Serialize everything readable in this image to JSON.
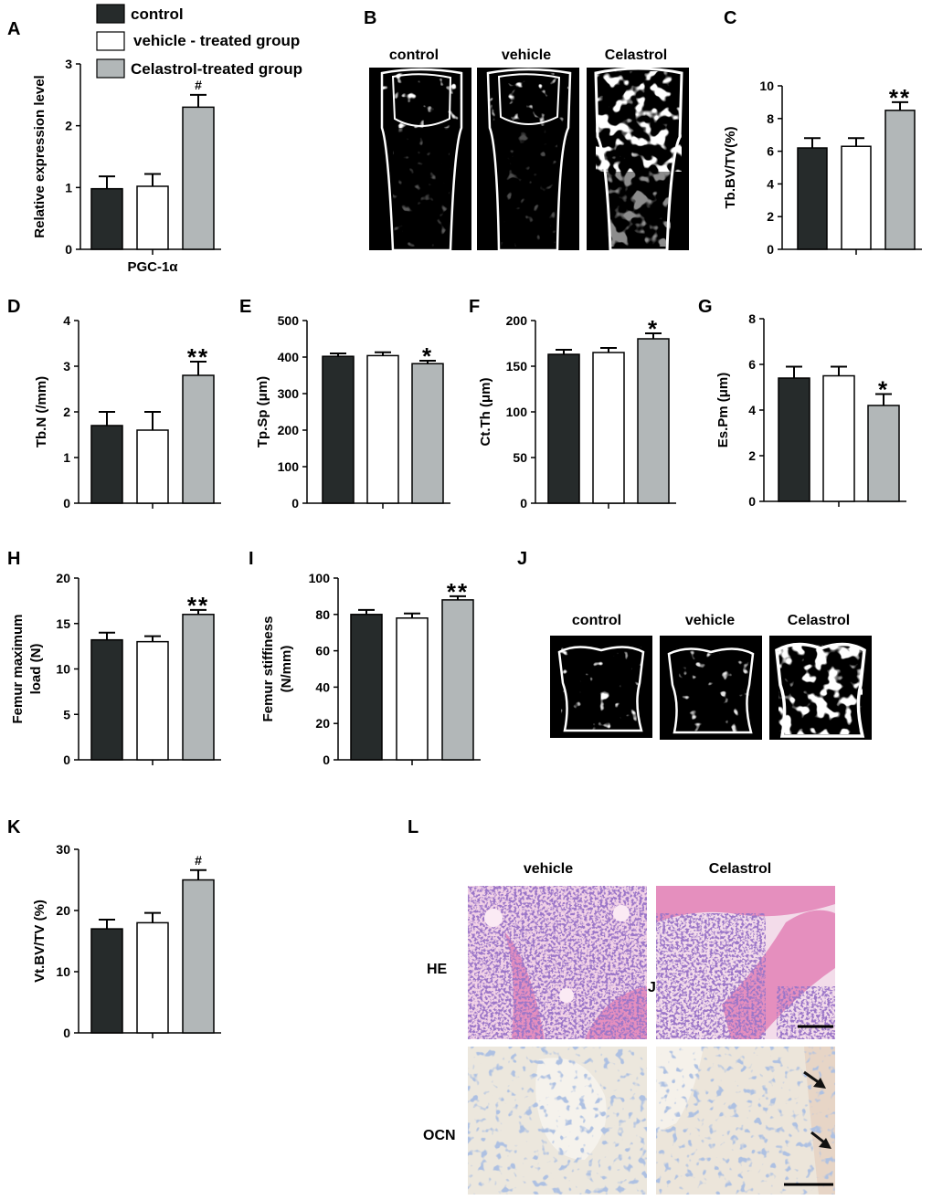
{
  "colors": {
    "control": "#262b2b",
    "vehicle": "#ffffff",
    "celastrol": "#b2b7b8",
    "he_bg": "#f1d2e6",
    "he_cell": "#5a2f9a",
    "he_pink": "#e58fbe",
    "ocn_bg": "#ece7dd",
    "ocn_cell": "#6f8bc0"
  },
  "legend": {
    "items": [
      {
        "label": "control",
        "color": "#262b2b"
      },
      {
        "label": "vehicle - treated group",
        "color": "#ffffff"
      },
      {
        "label": "Celastrol-treated group",
        "color": "#b2b7b8"
      }
    ]
  },
  "panels": {
    "A": "A",
    "B": "B",
    "C": "C",
    "D": "D",
    "E": "E",
    "F": "F",
    "G": "G",
    "H": "H",
    "I": "I",
    "J": "J",
    "K": "K",
    "L": "L"
  },
  "images": {
    "B": {
      "titles": [
        "control",
        "vehicle",
        "Celastrol"
      ]
    },
    "J": {
      "titles": [
        "control",
        "vehicle",
        "Celastrol"
      ]
    },
    "L": {
      "titles": [
        "vehicle",
        "Celastrol"
      ],
      "rows": [
        "HE",
        "OCN"
      ],
      "stray_letter": "J"
    }
  },
  "chart_data": [
    {
      "id": "A",
      "type": "bar",
      "categories": [
        "PGC-1α"
      ],
      "series": [
        {
          "name": "control",
          "values": [
            0.98
          ],
          "errors": [
            0.2
          ]
        },
        {
          "name": "vehicle - treated group",
          "values": [
            1.02
          ],
          "errors": [
            0.2
          ]
        },
        {
          "name": "Celastrol-treated group",
          "values": [
            2.3
          ],
          "errors": [
            0.2
          ]
        }
      ],
      "xlabel": "PGC-1α",
      "ylabel": "Relative expression level",
      "ylim": [
        0,
        3
      ],
      "yticks": [
        "0",
        "1",
        "2",
        "3"
      ],
      "annotations": [
        "",
        "",
        "#"
      ]
    },
    {
      "id": "C",
      "type": "bar",
      "categories": [
        ""
      ],
      "series": [
        {
          "name": "control",
          "values": [
            6.2
          ],
          "errors": [
            0.6
          ]
        },
        {
          "name": "vehicle - treated group",
          "values": [
            6.3
          ],
          "errors": [
            0.5
          ]
        },
        {
          "name": "Celastrol-treated group",
          "values": [
            8.5
          ],
          "errors": [
            0.5
          ]
        }
      ],
      "ylabel": "Tb.BV/TV(%)",
      "ylim": [
        0,
        10
      ],
      "yticks": [
        "0",
        "2",
        "4",
        "6",
        "8",
        "10"
      ],
      "annotations": [
        "",
        "",
        "**"
      ]
    },
    {
      "id": "D",
      "type": "bar",
      "categories": [
        ""
      ],
      "series": [
        {
          "name": "control",
          "values": [
            1.7
          ],
          "errors": [
            0.3
          ]
        },
        {
          "name": "vehicle - treated group",
          "values": [
            1.6
          ],
          "errors": [
            0.4
          ]
        },
        {
          "name": "Celastrol-treated group",
          "values": [
            2.8
          ],
          "errors": [
            0.3
          ]
        }
      ],
      "ylabel": "Tb.N (/mm)",
      "ylim": [
        0,
        4
      ],
      "yticks": [
        "0",
        "1",
        "2",
        "3",
        "4"
      ],
      "annotations": [
        "",
        "",
        "**"
      ]
    },
    {
      "id": "E",
      "type": "bar",
      "categories": [
        ""
      ],
      "series": [
        {
          "name": "control",
          "values": [
            402
          ],
          "errors": [
            8
          ]
        },
        {
          "name": "vehicle - treated group",
          "values": [
            404
          ],
          "errors": [
            9
          ]
        },
        {
          "name": "Celastrol-treated group",
          "values": [
            382
          ],
          "errors": [
            8
          ]
        }
      ],
      "ylabel": "Tp.Sp (μm)",
      "ylim": [
        0,
        500
      ],
      "yticks": [
        "0",
        "100",
        "200",
        "300",
        "400",
        "500"
      ],
      "annotations": [
        "",
        "",
        "*"
      ]
    },
    {
      "id": "F",
      "type": "bar",
      "categories": [
        ""
      ],
      "series": [
        {
          "name": "control",
          "values": [
            163
          ],
          "errors": [
            5
          ]
        },
        {
          "name": "vehicle - treated group",
          "values": [
            165
          ],
          "errors": [
            5
          ]
        },
        {
          "name": "Celastrol-treated group",
          "values": [
            180
          ],
          "errors": [
            6
          ]
        }
      ],
      "ylabel": "Ct.Th (μm)",
      "ylim": [
        0,
        200
      ],
      "yticks": [
        "0",
        "50",
        "100",
        "150",
        "200"
      ],
      "annotations": [
        "",
        "",
        "*"
      ]
    },
    {
      "id": "G",
      "type": "bar",
      "categories": [
        ""
      ],
      "series": [
        {
          "name": "control",
          "values": [
            5.4
          ],
          "errors": [
            0.5
          ]
        },
        {
          "name": "vehicle - treated group",
          "values": [
            5.5
          ],
          "errors": [
            0.4
          ]
        },
        {
          "name": "Celastrol-treated group",
          "values": [
            4.2
          ],
          "errors": [
            0.5
          ]
        }
      ],
      "ylabel": "Es.Pm (μm)",
      "ylim": [
        0,
        8
      ],
      "yticks": [
        "0",
        "2",
        "4",
        "6",
        "8"
      ],
      "annotations": [
        "",
        "",
        "*"
      ]
    },
    {
      "id": "H",
      "type": "bar",
      "categories": [
        ""
      ],
      "series": [
        {
          "name": "control",
          "values": [
            13.2
          ],
          "errors": [
            0.8
          ]
        },
        {
          "name": "vehicle - treated group",
          "values": [
            13.0
          ],
          "errors": [
            0.6
          ]
        },
        {
          "name": "Celastrol-treated group",
          "values": [
            16.0
          ],
          "errors": [
            0.5
          ]
        }
      ],
      "ylabel": "Femur maximum load (N)",
      "ylim": [
        0,
        20
      ],
      "yticks": [
        "0",
        "5",
        "10",
        "15",
        "20"
      ],
      "annotations": [
        "",
        "",
        "**"
      ]
    },
    {
      "id": "I",
      "type": "bar",
      "categories": [
        ""
      ],
      "series": [
        {
          "name": "control",
          "values": [
            80
          ],
          "errors": [
            2.5
          ]
        },
        {
          "name": "vehicle - treated group",
          "values": [
            78
          ],
          "errors": [
            2.5
          ]
        },
        {
          "name": "Celastrol-treated group",
          "values": [
            88
          ],
          "errors": [
            2
          ]
        }
      ],
      "ylabel": "Femur stiffiness (N/mm)",
      "ylim": [
        0,
        100
      ],
      "yticks": [
        "0",
        "20",
        "40",
        "60",
        "80",
        "100"
      ],
      "annotations": [
        "",
        "",
        "**"
      ]
    },
    {
      "id": "K",
      "type": "bar",
      "categories": [
        ""
      ],
      "series": [
        {
          "name": "control",
          "values": [
            17
          ],
          "errors": [
            1.5
          ]
        },
        {
          "name": "vehicle - treated group",
          "values": [
            18
          ],
          "errors": [
            1.6
          ]
        },
        {
          "name": "Celastrol-treated group",
          "values": [
            25
          ],
          "errors": [
            1.6
          ]
        }
      ],
      "ylabel": "Vt.BV/TV (%)",
      "ylim": [
        0,
        30
      ],
      "yticks": [
        "0",
        "10",
        "20",
        "30"
      ],
      "annotations": [
        "",
        "",
        "#"
      ]
    }
  ]
}
